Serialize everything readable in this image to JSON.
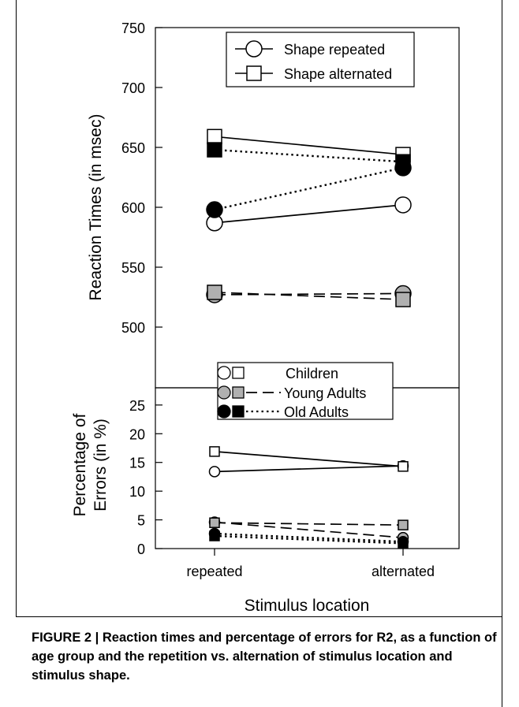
{
  "caption": "FIGURE 2 | Reaction times and percentage of errors for R2, as a function of age group and the repetition vs. alternation of stimulus location and stimulus shape.",
  "chart_data": [
    {
      "type": "line",
      "ylabel": "Reaction Times (in msec)",
      "ylim": [
        500,
        750
      ],
      "yticks": [
        500,
        550,
        600,
        650,
        700,
        750
      ],
      "categories": [
        "repeated",
        "alternated"
      ],
      "legend": {
        "position": "top",
        "entries": [
          "Shape repeated",
          "Shape alternated"
        ]
      },
      "series": [
        {
          "group": "Children",
          "shape": "Shape repeated",
          "values": [
            587,
            602
          ]
        },
        {
          "group": "Children",
          "shape": "Shape alternated",
          "values": [
            659,
            644
          ]
        },
        {
          "group": "Young Adults",
          "shape": "Shape repeated",
          "values": [
            527,
            528
          ]
        },
        {
          "group": "Young Adults",
          "shape": "Shape alternated",
          "values": [
            529,
            523
          ]
        },
        {
          "group": "Old Adults",
          "shape": "Shape repeated",
          "values": [
            598,
            633
          ]
        },
        {
          "group": "Old Adults",
          "shape": "Shape alternated",
          "values": [
            648,
            638
          ]
        }
      ]
    },
    {
      "type": "line",
      "ylabel": "Percentage of Errors (in %)",
      "ylim": [
        0,
        28
      ],
      "yticks": [
        0,
        5,
        10,
        15,
        20,
        25
      ],
      "xlabel": "Stimulus location",
      "categories": [
        "repeated",
        "alternated"
      ],
      "legend": {
        "position": "top",
        "entries": [
          "Children",
          "Young Adults",
          "Old Adults"
        ]
      },
      "series": [
        {
          "group": "Children",
          "shape": "Shape repeated",
          "values": [
            13.4,
            14.4
          ]
        },
        {
          "group": "Children",
          "shape": "Shape alternated",
          "values": [
            16.9,
            14.3
          ]
        },
        {
          "group": "Young Adults",
          "shape": "Shape repeated",
          "values": [
            4.6,
            1.9
          ]
        },
        {
          "group": "Young Adults",
          "shape": "Shape alternated",
          "values": [
            4.5,
            4.1
          ]
        },
        {
          "group": "Old Adults",
          "shape": "Shape repeated",
          "values": [
            2.6,
            1.2
          ]
        },
        {
          "group": "Old Adults",
          "shape": "Shape alternated",
          "values": [
            2.2,
            0.9
          ]
        }
      ]
    }
  ],
  "styles": {
    "Children": {
      "fill": "#ffffff",
      "dash": ""
    },
    "Young Adults": {
      "fill": "#b0b0b0",
      "dash": "14 7"
    },
    "Old Adults": {
      "fill": "#000000",
      "dash": "2.5 4"
    }
  }
}
